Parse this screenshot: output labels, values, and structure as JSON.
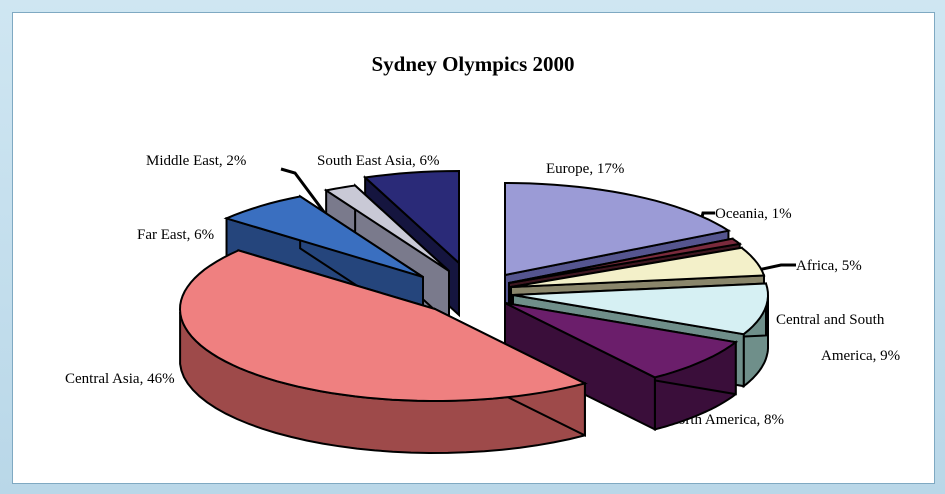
{
  "chart_data": {
    "type": "pie",
    "title": "Sydney Olympics 2000",
    "slices": [
      {
        "label": "Europe, 17%",
        "value": 17,
        "top": "#9b9bd6",
        "side": "#55558f"
      },
      {
        "label": "Oceania, 1%",
        "value": 1,
        "top": "#7a2a3c",
        "side": "#3e1620"
      },
      {
        "label": "Africa, 5%",
        "value": 5,
        "top": "#f3f0c9",
        "side": "#8a866b"
      },
      {
        "label": "Central and South America, 9%",
        "value": 9,
        "top": "#d6f0f3",
        "side": "#6f8f8a"
      },
      {
        "label": "North America, 8%",
        "value": 8,
        "top": "#6b1e6b",
        "side": "#3a0e3a"
      },
      {
        "label": "Central Asia, 46%",
        "value": 46,
        "top": "#ef8080",
        "side": "#9e4a4a"
      },
      {
        "label": "Far East, 6%",
        "value": 6,
        "top": "#3a6fc0",
        "side": "#25457c"
      },
      {
        "label": "Middle East, 2%",
        "value": 2,
        "top": "#c9c9d6",
        "side": "#7a7a8c"
      },
      {
        "label": "South East Asia, 6%",
        "value": 6,
        "top": "#2a2a78",
        "side": "#15153f"
      }
    ]
  }
}
